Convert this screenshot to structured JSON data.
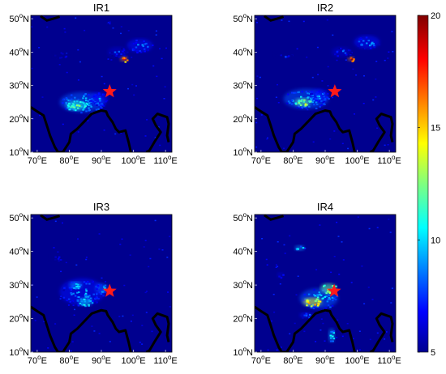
{
  "chart_data": [
    {
      "type": "heatmap",
      "title": "IR1",
      "xticks": [
        70,
        80,
        90,
        100,
        110
      ],
      "yticks": [
        10,
        20,
        30,
        40,
        50
      ],
      "xlim": [
        68,
        112
      ],
      "ylim": [
        10,
        51
      ],
      "star": {
        "lon": 92.6,
        "lat": 28.2
      },
      "hotspots": [
        {
          "lon": 84,
          "lat": 25,
          "rx": 7,
          "ry": 3,
          "level": 11
        },
        {
          "lon": 82,
          "lat": 24,
          "rx": 3,
          "ry": 1.5,
          "level": 14
        },
        {
          "lon": 89,
          "lat": 26,
          "rx": 3,
          "ry": 2,
          "level": 10
        },
        {
          "lon": 102,
          "lat": 42,
          "rx": 4,
          "ry": 2,
          "level": 10
        },
        {
          "lon": 97,
          "lat": 38,
          "rx": 1.2,
          "ry": 0.8,
          "level": 19
        },
        {
          "lon": 78,
          "lat": 39,
          "rx": 3,
          "ry": 1,
          "level": 8
        },
        {
          "lon": 95,
          "lat": 40,
          "rx": 3,
          "ry": 1.5,
          "level": 9
        },
        {
          "lon": 92,
          "lat": 49,
          "rx": 1,
          "ry": 0.6,
          "level": 8
        }
      ]
    },
    {
      "type": "heatmap",
      "title": "IR2",
      "xticks": [
        70,
        80,
        90,
        100,
        110
      ],
      "yticks": [
        10,
        20,
        30,
        40,
        50
      ],
      "xlim": [
        68,
        112
      ],
      "ylim": [
        10,
        51
      ],
      "star": {
        "lon": 93,
        "lat": 28.2
      },
      "hotspots": [
        {
          "lon": 84,
          "lat": 26,
          "rx": 7,
          "ry": 3,
          "level": 11
        },
        {
          "lon": 83,
          "lat": 25,
          "rx": 2.5,
          "ry": 1.2,
          "level": 15
        },
        {
          "lon": 88,
          "lat": 27,
          "rx": 3,
          "ry": 2,
          "level": 10
        },
        {
          "lon": 103,
          "lat": 43,
          "rx": 4,
          "ry": 2,
          "level": 10
        },
        {
          "lon": 98,
          "lat": 38,
          "rx": 1,
          "ry": 0.7,
          "level": 19
        },
        {
          "lon": 77,
          "lat": 39,
          "rx": 3,
          "ry": 1,
          "level": 8
        },
        {
          "lon": 95,
          "lat": 40,
          "rx": 3,
          "ry": 1.5,
          "level": 9
        }
      ]
    },
    {
      "type": "heatmap",
      "title": "IR3",
      "xticks": [
        70,
        80,
        90,
        100,
        110
      ],
      "yticks": [
        10,
        20,
        30,
        40,
        50
      ],
      "xlim": [
        68,
        112
      ],
      "ylim": [
        10,
        51
      ],
      "star": {
        "lon": 92.6,
        "lat": 28.2
      },
      "hotspots": [
        {
          "lon": 84,
          "lat": 28,
          "rx": 7,
          "ry": 4,
          "level": 10
        },
        {
          "lon": 85,
          "lat": 25,
          "rx": 2,
          "ry": 1.2,
          "level": 13
        },
        {
          "lon": 90,
          "lat": 29,
          "rx": 2,
          "ry": 1.5,
          "level": 11
        },
        {
          "lon": 77,
          "lat": 38,
          "rx": 3,
          "ry": 1,
          "level": 8
        },
        {
          "lon": 82,
          "lat": 30,
          "rx": 2,
          "ry": 1,
          "level": 12
        }
      ]
    },
    {
      "type": "heatmap",
      "title": "IR4",
      "xticks": [
        70,
        80,
        90,
        100,
        110
      ],
      "yticks": [
        10,
        20,
        30,
        40,
        50
      ],
      "xlim": [
        68,
        112
      ],
      "ylim": [
        10,
        51
      ],
      "star": {
        "lon": 92.8,
        "lat": 28.2
      },
      "hotspots": [
        {
          "lon": 88,
          "lat": 26,
          "rx": 6,
          "ry": 3,
          "level": 11
        },
        {
          "lon": 86,
          "lat": 25,
          "rx": 3,
          "ry": 1.2,
          "level": 17
        },
        {
          "lon": 91,
          "lat": 29,
          "rx": 2.5,
          "ry": 1.5,
          "level": 15
        },
        {
          "lon": 92,
          "lat": 15,
          "rx": 1,
          "ry": 2,
          "level": 12
        },
        {
          "lon": 82,
          "lat": 41,
          "rx": 1.5,
          "ry": 0.8,
          "level": 12
        },
        {
          "lon": 76,
          "lat": 33,
          "rx": 1,
          "ry": 0.8,
          "level": 9
        },
        {
          "lon": 84,
          "lat": 21,
          "rx": 2,
          "ry": 0.8,
          "level": 10
        }
      ]
    }
  ],
  "colorbar": {
    "min": 5,
    "max": 20,
    "ticks": [
      "20",
      "15",
      "10",
      "5"
    ]
  },
  "tick_labels": {
    "x": [
      {
        "num": "70",
        "dir": "E"
      },
      {
        "num": "80",
        "dir": "E"
      },
      {
        "num": "90",
        "dir": "E"
      },
      {
        "num": "100",
        "dir": "E"
      },
      {
        "num": "110",
        "dir": "E"
      }
    ],
    "y": [
      {
        "num": "50",
        "dir": "N"
      },
      {
        "num": "40",
        "dir": "N"
      },
      {
        "num": "30",
        "dir": "N"
      },
      {
        "num": "20",
        "dir": "N"
      },
      {
        "num": "10",
        "dir": "N"
      }
    ],
    "degree": "o"
  },
  "colors": {
    "background": "#00008f",
    "coast": "#000000",
    "star": "#ff1a1a"
  }
}
